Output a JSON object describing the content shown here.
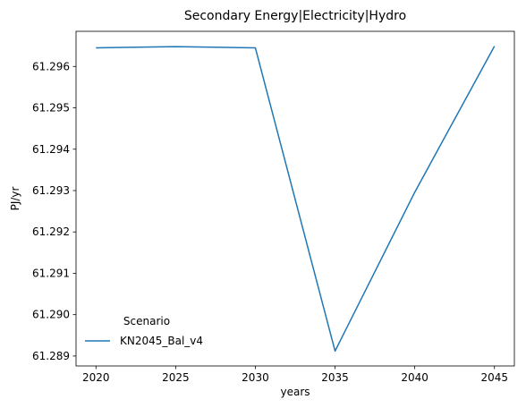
{
  "chart_data": {
    "type": "line",
    "title": "Secondary Energy|Electricity|Hydro",
    "xlabel": "years",
    "ylabel": "PJ/yr",
    "x": [
      2020,
      2025,
      2030,
      2035,
      2040,
      2045
    ],
    "series": [
      {
        "name": "KN2045_Bal_v4",
        "color": "#1f77b4",
        "values": [
          61.29645,
          61.29648,
          61.29645,
          61.28912,
          61.29296,
          61.29649
        ]
      }
    ],
    "xticks": [
      2020,
      2025,
      2030,
      2035,
      2040,
      2045
    ],
    "yticks": [
      61.289,
      61.29,
      61.291,
      61.292,
      61.293,
      61.294,
      61.295,
      61.296
    ],
    "ytick_labels": [
      "61.289",
      "61.290",
      "61.291",
      "61.292",
      "61.293",
      "61.294",
      "61.295",
      "61.296"
    ],
    "xlim": [
      2018.75,
      2046.25
    ],
    "ylim": [
      61.28876,
      61.29685
    ],
    "grid": false,
    "legend": {
      "title": "Scenario",
      "placement": "lower-left"
    }
  }
}
